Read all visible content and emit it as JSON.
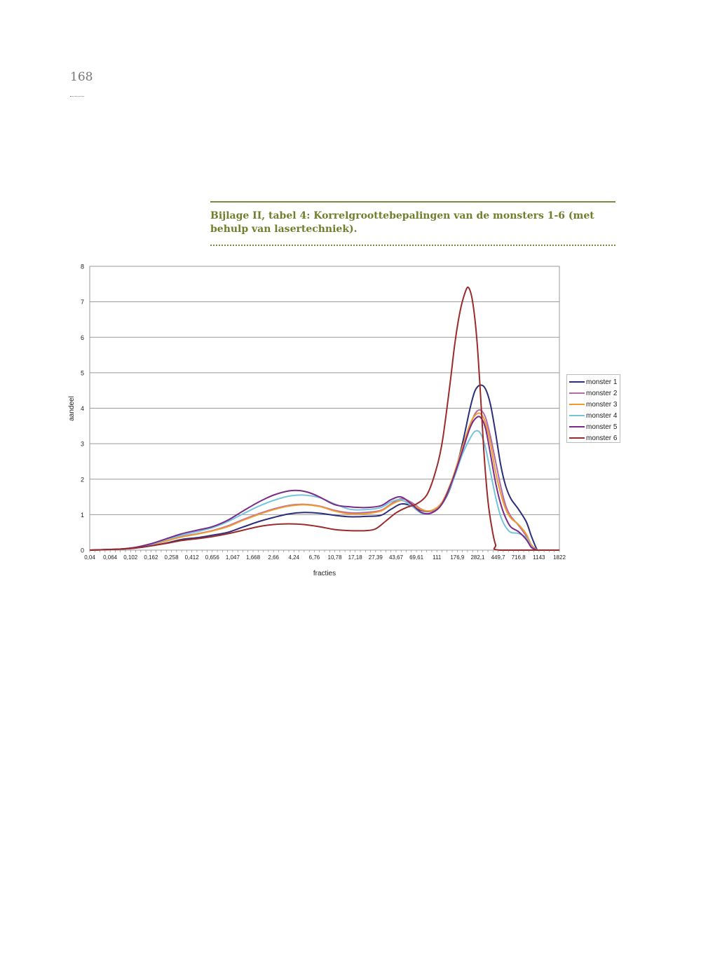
{
  "page": {
    "number": "168",
    "caption": "Bijlage II, tabel 4: Korrelgroottebepalingen van de monsters 1-6 (met behulp van lasertechniek)."
  },
  "chart_data": {
    "type": "line",
    "xlabel": "fracties",
    "ylabel": "aandeel",
    "ylim": [
      0,
      8
    ],
    "yticks": [
      0,
      1,
      2,
      3,
      4,
      5,
      6,
      7,
      8
    ],
    "grid": true,
    "legend_position": "right",
    "x_tick_labels": [
      "0,04",
      "0,064",
      "0,102",
      "0,162",
      "0,258",
      "0,412",
      "0,656",
      "1,047",
      "1,668",
      "2,66",
      "4,24",
      "6,76",
      "10,78",
      "17,18",
      "27,39",
      "43,67",
      "69,61",
      "111",
      "176,9",
      "282,1",
      "449,7",
      "716,8",
      "1143",
      "1822"
    ],
    "x_point_count": 93,
    "series": [
      {
        "name": "monster 1",
        "color": "#2b2e7a",
        "points": [
          [
            0,
            0
          ],
          [
            6,
            0.03
          ],
          [
            9,
            0.06
          ],
          [
            12,
            0.12
          ],
          [
            15,
            0.2
          ],
          [
            18,
            0.3
          ],
          [
            21,
            0.35
          ],
          [
            24,
            0.42
          ],
          [
            27,
            0.5
          ],
          [
            30,
            0.65
          ],
          [
            33,
            0.8
          ],
          [
            36,
            0.92
          ],
          [
            39,
            1.02
          ],
          [
            42,
            1.06
          ],
          [
            45,
            1.04
          ],
          [
            48,
            0.98
          ],
          [
            51,
            0.94
          ],
          [
            54,
            0.95
          ],
          [
            57,
            0.98
          ],
          [
            59,
            1.15
          ],
          [
            61,
            1.3
          ],
          [
            63,
            1.25
          ],
          [
            65,
            1.12
          ],
          [
            67,
            1.1
          ],
          [
            69,
            1.3
          ],
          [
            71,
            1.9
          ],
          [
            73,
            3.0
          ],
          [
            74.5,
            4.0
          ],
          [
            75.5,
            4.5
          ],
          [
            76.5,
            4.65
          ],
          [
            77.5,
            4.55
          ],
          [
            78.5,
            4.1
          ],
          [
            79.5,
            3.3
          ],
          [
            80.5,
            2.4
          ],
          [
            81.5,
            1.8
          ],
          [
            82.5,
            1.45
          ],
          [
            84,
            1.15
          ],
          [
            85.5,
            0.8
          ],
          [
            86.5,
            0.4
          ],
          [
            87.5,
            0.05
          ],
          [
            88,
            0
          ],
          [
            92,
            0
          ]
        ]
      },
      {
        "name": "monster 2",
        "color": "#b06aa8",
        "points": [
          [
            0,
            0
          ],
          [
            6,
            0.03
          ],
          [
            9,
            0.07
          ],
          [
            12,
            0.15
          ],
          [
            15,
            0.26
          ],
          [
            18,
            0.38
          ],
          [
            21,
            0.46
          ],
          [
            24,
            0.55
          ],
          [
            27,
            0.68
          ],
          [
            30,
            0.86
          ],
          [
            33,
            1.02
          ],
          [
            36,
            1.16
          ],
          [
            39,
            1.26
          ],
          [
            42,
            1.29
          ],
          [
            45,
            1.24
          ],
          [
            48,
            1.12
          ],
          [
            51,
            1.05
          ],
          [
            54,
            1.06
          ],
          [
            57,
            1.12
          ],
          [
            59,
            1.3
          ],
          [
            61,
            1.45
          ],
          [
            63,
            1.35
          ],
          [
            65,
            1.15
          ],
          [
            67,
            1.1
          ],
          [
            69,
            1.35
          ],
          [
            71,
            1.95
          ],
          [
            73,
            2.8
          ],
          [
            74.5,
            3.5
          ],
          [
            75.5,
            3.85
          ],
          [
            76.5,
            3.95
          ],
          [
            77.5,
            3.75
          ],
          [
            78.5,
            3.2
          ],
          [
            79.5,
            2.5
          ],
          [
            80.5,
            1.8
          ],
          [
            81.5,
            1.25
          ],
          [
            82.5,
            0.95
          ],
          [
            84,
            0.7
          ],
          [
            85.5,
            0.4
          ],
          [
            86.5,
            0.15
          ],
          [
            87.5,
            0.02
          ],
          [
            88,
            0
          ],
          [
            92,
            0
          ]
        ]
      },
      {
        "name": "monster 3",
        "color": "#f39a2c",
        "points": [
          [
            0,
            0
          ],
          [
            6,
            0.03
          ],
          [
            9,
            0.07
          ],
          [
            12,
            0.15
          ],
          [
            15,
            0.26
          ],
          [
            18,
            0.37
          ],
          [
            21,
            0.45
          ],
          [
            24,
            0.54
          ],
          [
            27,
            0.66
          ],
          [
            30,
            0.84
          ],
          [
            33,
            1.0
          ],
          [
            36,
            1.14
          ],
          [
            39,
            1.24
          ],
          [
            42,
            1.28
          ],
          [
            45,
            1.23
          ],
          [
            48,
            1.1
          ],
          [
            51,
            1.02
          ],
          [
            54,
            1.03
          ],
          [
            57,
            1.1
          ],
          [
            59,
            1.28
          ],
          [
            61,
            1.4
          ],
          [
            63,
            1.3
          ],
          [
            65,
            1.14
          ],
          [
            67,
            1.12
          ],
          [
            69,
            1.35
          ],
          [
            71,
            2.0
          ],
          [
            73,
            2.9
          ],
          [
            74.5,
            3.55
          ],
          [
            75.5,
            3.8
          ],
          [
            76.5,
            3.85
          ],
          [
            77.5,
            3.6
          ],
          [
            78.5,
            3.0
          ],
          [
            79.5,
            2.2
          ],
          [
            80.5,
            1.6
          ],
          [
            81.5,
            1.15
          ],
          [
            82.5,
            0.9
          ],
          [
            84,
            0.72
          ],
          [
            85.5,
            0.45
          ],
          [
            86.5,
            0.15
          ],
          [
            87.5,
            0.02
          ],
          [
            88,
            0
          ],
          [
            92,
            0
          ]
        ]
      },
      {
        "name": "monster 4",
        "color": "#74c4dc",
        "points": [
          [
            0,
            0
          ],
          [
            6,
            0.03
          ],
          [
            9,
            0.07
          ],
          [
            12,
            0.16
          ],
          [
            15,
            0.3
          ],
          [
            18,
            0.42
          ],
          [
            21,
            0.52
          ],
          [
            24,
            0.63
          ],
          [
            27,
            0.8
          ],
          [
            30,
            1.02
          ],
          [
            33,
            1.23
          ],
          [
            36,
            1.4
          ],
          [
            39,
            1.52
          ],
          [
            42,
            1.55
          ],
          [
            45,
            1.48
          ],
          [
            48,
            1.3
          ],
          [
            51,
            1.15
          ],
          [
            54,
            1.14
          ],
          [
            57,
            1.2
          ],
          [
            59,
            1.36
          ],
          [
            61,
            1.42
          ],
          [
            63,
            1.25
          ],
          [
            65,
            1.04
          ],
          [
            67,
            1.05
          ],
          [
            69,
            1.3
          ],
          [
            71,
            1.9
          ],
          [
            73,
            2.7
          ],
          [
            74.5,
            3.15
          ],
          [
            75.5,
            3.35
          ],
          [
            76.5,
            3.3
          ],
          [
            77.5,
            2.9
          ],
          [
            78.5,
            2.2
          ],
          [
            79.5,
            1.5
          ],
          [
            80.5,
            0.95
          ],
          [
            81.5,
            0.65
          ],
          [
            82.5,
            0.5
          ],
          [
            84,
            0.47
          ],
          [
            85.5,
            0.35
          ],
          [
            86.5,
            0.1
          ],
          [
            87.5,
            0.01
          ],
          [
            88,
            0
          ],
          [
            92,
            0
          ]
        ]
      },
      {
        "name": "monster 5",
        "color": "#7a2a8a",
        "points": [
          [
            0,
            0
          ],
          [
            6,
            0.03
          ],
          [
            9,
            0.08
          ],
          [
            12,
            0.18
          ],
          [
            15,
            0.32
          ],
          [
            18,
            0.46
          ],
          [
            21,
            0.56
          ],
          [
            24,
            0.66
          ],
          [
            27,
            0.84
          ],
          [
            30,
            1.1
          ],
          [
            33,
            1.35
          ],
          [
            36,
            1.55
          ],
          [
            39,
            1.67
          ],
          [
            41,
            1.68
          ],
          [
            43,
            1.62
          ],
          [
            45,
            1.5
          ],
          [
            48,
            1.28
          ],
          [
            51,
            1.22
          ],
          [
            54,
            1.2
          ],
          [
            57,
            1.25
          ],
          [
            59,
            1.42
          ],
          [
            61,
            1.5
          ],
          [
            63,
            1.3
          ],
          [
            65,
            1.06
          ],
          [
            67,
            1.05
          ],
          [
            69,
            1.3
          ],
          [
            71,
            1.95
          ],
          [
            73,
            2.8
          ],
          [
            74.5,
            3.45
          ],
          [
            75.5,
            3.7
          ],
          [
            76.5,
            3.75
          ],
          [
            77.5,
            3.45
          ],
          [
            78.5,
            2.7
          ],
          [
            79.5,
            1.9
          ],
          [
            80.5,
            1.3
          ],
          [
            81.5,
            0.9
          ],
          [
            82.5,
            0.65
          ],
          [
            84,
            0.52
          ],
          [
            85.5,
            0.3
          ],
          [
            86.5,
            0.08
          ],
          [
            87.5,
            0.01
          ],
          [
            88,
            0
          ],
          [
            92,
            0
          ]
        ]
      },
      {
        "name": "monster 6",
        "color": "#9b2a2a",
        "points": [
          [
            0,
            0
          ],
          [
            6,
            0.03
          ],
          [
            9,
            0.06
          ],
          [
            12,
            0.12
          ],
          [
            15,
            0.19
          ],
          [
            18,
            0.27
          ],
          [
            21,
            0.32
          ],
          [
            24,
            0.38
          ],
          [
            27,
            0.46
          ],
          [
            30,
            0.56
          ],
          [
            33,
            0.66
          ],
          [
            36,
            0.72
          ],
          [
            39,
            0.74
          ],
          [
            42,
            0.72
          ],
          [
            45,
            0.66
          ],
          [
            48,
            0.58
          ],
          [
            51,
            0.55
          ],
          [
            54,
            0.55
          ],
          [
            56,
            0.6
          ],
          [
            58,
            0.82
          ],
          [
            60,
            1.05
          ],
          [
            62,
            1.2
          ],
          [
            64,
            1.3
          ],
          [
            66,
            1.55
          ],
          [
            67.5,
            2.1
          ],
          [
            69,
            3.0
          ],
          [
            70.5,
            4.6
          ],
          [
            71.5,
            5.8
          ],
          [
            72.5,
            6.7
          ],
          [
            73.5,
            7.25
          ],
          [
            74.2,
            7.4
          ],
          [
            75,
            7.0
          ],
          [
            75.8,
            6.0
          ],
          [
            76.5,
            4.5
          ],
          [
            77.2,
            2.8
          ],
          [
            78,
            1.4
          ],
          [
            78.8,
            0.6
          ],
          [
            79.5,
            0.15
          ],
          [
            80.3,
            0
          ],
          [
            92,
            0
          ]
        ]
      }
    ]
  }
}
